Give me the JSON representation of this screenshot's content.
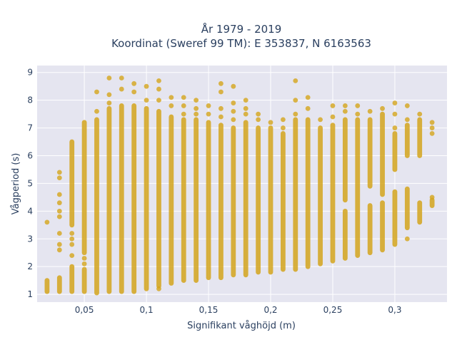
{
  "chart_data": {
    "type": "scatter",
    "title_line1": "År 1979 - 2019",
    "title_line2": "Koordinat (Sweref 99 TM): E 353837, N 6163563",
    "xlabel": "Signifikant våghöjd (m)",
    "ylabel": "Vågperiod (s)",
    "xlim": [
      0.012,
      0.342
    ],
    "ylim": [
      0.72,
      9.25
    ],
    "x_ticks": [
      0.05,
      0.1,
      0.15,
      0.2,
      0.25,
      0.3
    ],
    "x_tick_labels": [
      "0,05",
      "0,1",
      "0,15",
      "0,2",
      "0,25",
      "0,3"
    ],
    "y_ticks": [
      1,
      2,
      3,
      4,
      5,
      6,
      7,
      8,
      9
    ],
    "y_tick_labels": [
      "1",
      "2",
      "3",
      "4",
      "5",
      "6",
      "7",
      "8",
      "9"
    ],
    "grid": true,
    "marker_color": "#d4a51c",
    "plot_bg": "#e5e5f0",
    "columns": [
      {
        "x": 0.02,
        "segments": [
          [
            1.1,
            1.5
          ]
        ],
        "outliers": [
          3.6
        ]
      },
      {
        "x": 0.03,
        "segments": [
          [
            1.1,
            1.6
          ]
        ],
        "outliers": [
          2.6,
          2.8,
          3.2,
          3.8,
          4.0,
          4.3,
          4.6,
          5.2,
          5.4
        ]
      },
      {
        "x": 0.04,
        "segments": [
          [
            1.1,
            2.0
          ],
          [
            3.5,
            6.5
          ]
        ],
        "outliers": [
          2.4,
          2.8,
          3.0,
          3.2
        ]
      },
      {
        "x": 0.05,
        "segments": [
          [
            1.1,
            1.9
          ],
          [
            2.5,
            7.2
          ]
        ],
        "outliers": [
          2.1,
          2.3
        ]
      },
      {
        "x": 0.06,
        "segments": [
          [
            1.05,
            7.3
          ]
        ],
        "outliers": [
          7.6,
          8.3
        ]
      },
      {
        "x": 0.07,
        "segments": [
          [
            1.1,
            7.7
          ]
        ],
        "outliers": [
          7.9,
          8.2,
          8.8
        ]
      },
      {
        "x": 0.08,
        "segments": [
          [
            1.1,
            7.8
          ]
        ],
        "outliers": [
          8.4,
          8.8
        ]
      },
      {
        "x": 0.09,
        "segments": [
          [
            1.1,
            7.8
          ]
        ],
        "outliers": [
          8.3,
          8.6
        ]
      },
      {
        "x": 0.1,
        "segments": [
          [
            1.2,
            7.7
          ]
        ],
        "outliers": [
          8.0,
          8.5
        ]
      },
      {
        "x": 0.11,
        "segments": [
          [
            1.3,
            7.6
          ]
        ],
        "outliers": [
          1.2,
          8.0,
          8.4,
          8.7
        ]
      },
      {
        "x": 0.12,
        "segments": [
          [
            1.4,
            7.4
          ]
        ],
        "outliers": [
          7.8,
          8.1
        ]
      },
      {
        "x": 0.13,
        "segments": [
          [
            1.5,
            7.3
          ]
        ],
        "outliers": [
          7.5,
          7.8,
          8.1
        ]
      },
      {
        "x": 0.14,
        "segments": [
          [
            1.5,
            7.3
          ]
        ],
        "outliers": [
          7.5,
          7.7,
          8.0
        ]
      },
      {
        "x": 0.15,
        "segments": [
          [
            1.6,
            7.2
          ]
        ],
        "outliers": [
          7.5,
          7.8
        ]
      },
      {
        "x": 0.16,
        "segments": [
          [
            1.6,
            7.1
          ]
        ],
        "outliers": [
          7.4,
          7.7,
          8.3,
          8.6
        ]
      },
      {
        "x": 0.17,
        "segments": [
          [
            1.7,
            7.0
          ]
        ],
        "outliers": [
          7.3,
          7.6,
          7.9,
          8.5
        ]
      },
      {
        "x": 0.18,
        "segments": [
          [
            1.7,
            7.2
          ]
        ],
        "outliers": [
          7.5,
          7.7,
          8.0
        ]
      },
      {
        "x": 0.19,
        "segments": [
          [
            1.8,
            7.0
          ]
        ],
        "outliers": [
          7.3,
          7.5
        ]
      },
      {
        "x": 0.2,
        "segments": [
          [
            1.8,
            7.0
          ]
        ],
        "outliers": [
          7.2
        ]
      },
      {
        "x": 0.21,
        "segments": [
          [
            1.9,
            6.8
          ]
        ],
        "outliers": [
          7.0,
          7.3
        ]
      },
      {
        "x": 0.22,
        "segments": [
          [
            1.9,
            7.3
          ]
        ],
        "outliers": [
          7.5,
          8.0,
          8.7
        ]
      },
      {
        "x": 0.23,
        "segments": [
          [
            2.0,
            7.3
          ]
        ],
        "outliers": [
          7.7,
          8.1
        ]
      },
      {
        "x": 0.24,
        "segments": [
          [
            2.1,
            7.0
          ]
        ],
        "outliers": [
          7.3
        ]
      },
      {
        "x": 0.25,
        "segments": [
          [
            2.2,
            7.1
          ]
        ],
        "outliers": [
          7.4,
          7.8
        ]
      },
      {
        "x": 0.26,
        "segments": [
          [
            2.3,
            4.0
          ],
          [
            4.4,
            7.3
          ]
        ],
        "outliers": [
          7.6,
          7.8
        ]
      },
      {
        "x": 0.27,
        "segments": [
          [
            2.4,
            7.3
          ]
        ],
        "outliers": [
          7.5,
          7.8
        ]
      },
      {
        "x": 0.28,
        "segments": [
          [
            2.5,
            4.2
          ],
          [
            4.9,
            7.3
          ]
        ],
        "outliers": [
          7.6
        ]
      },
      {
        "x": 0.29,
        "segments": [
          [
            2.6,
            4.3
          ],
          [
            4.6,
            7.5
          ]
        ],
        "outliers": [
          7.7
        ]
      },
      {
        "x": 0.3,
        "segments": [
          [
            2.8,
            4.7
          ],
          [
            5.5,
            6.8
          ]
        ],
        "outliers": [
          7.0,
          7.5,
          7.9
        ]
      },
      {
        "x": 0.31,
        "segments": [
          [
            3.4,
            4.8
          ],
          [
            6.0,
            7.1
          ]
        ],
        "outliers": [
          3.0,
          7.3,
          7.8
        ]
      },
      {
        "x": 0.32,
        "segments": [
          [
            3.6,
            4.3
          ],
          [
            6.0,
            7.3
          ]
        ],
        "outliers": [
          7.5
        ]
      },
      {
        "x": 0.33,
        "segments": [
          [
            4.2,
            4.4
          ]
        ],
        "outliers": [
          6.8,
          7.0,
          7.2,
          4.5
        ]
      }
    ]
  }
}
